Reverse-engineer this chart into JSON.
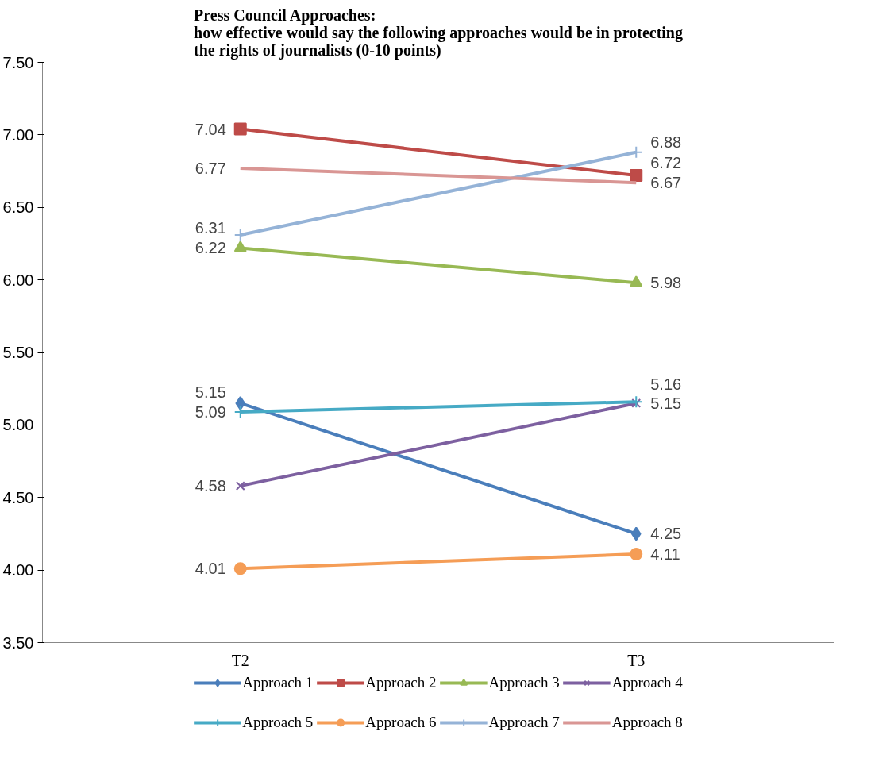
{
  "chart_data": {
    "type": "line",
    "title": "Press Council Approaches:\nhow effective would say the following approaches would be in protecting\nthe rights of journalists (0-10 points)",
    "categories": [
      "T2",
      "T3"
    ],
    "series": [
      {
        "name": "Approach 1",
        "color": "#4a7ebb",
        "marker": "diamond",
        "values": [
          5.15,
          4.25
        ]
      },
      {
        "name": "Approach 2",
        "color": "#be4b48",
        "marker": "square",
        "values": [
          7.04,
          6.72
        ]
      },
      {
        "name": "Approach 3",
        "color": "#98b954",
        "marker": "triangle",
        "values": [
          6.22,
          5.98
        ]
      },
      {
        "name": "Approach 4",
        "color": "#7d60a0",
        "marker": "x",
        "values": [
          4.58,
          5.15
        ]
      },
      {
        "name": "Approach 5",
        "color": "#46aac5",
        "marker": "cross",
        "values": [
          5.09,
          5.16
        ]
      },
      {
        "name": "Approach 6",
        "color": "#f59d56",
        "marker": "circle",
        "values": [
          4.01,
          4.11
        ]
      },
      {
        "name": "Approach 7",
        "color": "#95b3d7",
        "marker": "cross",
        "values": [
          6.31,
          6.88
        ]
      },
      {
        "name": "Approach 8",
        "color": "#d99694",
        "marker": "none",
        "values": [
          6.77,
          6.67
        ]
      }
    ],
    "ylim": [
      3.5,
      7.5
    ],
    "yticks": [
      {
        "value": 3.5,
        "label": "3.50"
      },
      {
        "value": 4,
        "label": "4.00"
      },
      {
        "value": 4.5,
        "label": "4.50"
      },
      {
        "value": 5,
        "label": "5.00"
      },
      {
        "value": 5.5,
        "label": "5.50"
      },
      {
        "value": 6,
        "label": "6.00"
      },
      {
        "value": 6.5,
        "label": "6.50"
      },
      {
        "value": 7,
        "label": "7.00"
      },
      {
        "value": 7.5,
        "label": "7.50"
      }
    ],
    "data_labels": true,
    "grid": false,
    "legend": "bottom",
    "line_style": "solid"
  }
}
